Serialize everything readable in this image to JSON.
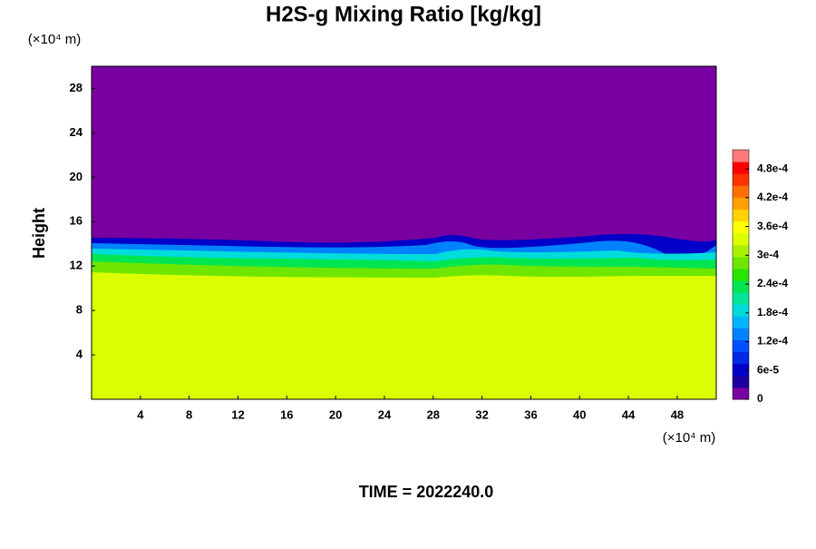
{
  "chart_data": {
    "type": "contour",
    "title": "H2S-g Mixing Ratio [kg/kg]",
    "y_label": "Height",
    "x_unit": "(×10⁴ m)",
    "y_unit": "(×10⁴ m)",
    "footer": "TIME = 2022240.0",
    "xlim": [
      0,
      51.2
    ],
    "xticks": [
      4,
      8,
      12,
      16,
      20,
      24,
      28,
      32,
      36,
      40,
      44,
      48
    ],
    "ylim": [
      0,
      30
    ],
    "yticks": [
      4,
      8,
      12,
      16,
      20,
      24,
      28
    ],
    "colorbar": {
      "lim": [
        0,
        0.00052
      ],
      "ticks": [
        0,
        {
          "value": 6e-05,
          "label": "6e-5"
        },
        {
          "value": 0.00012,
          "label": "1.2e-4"
        },
        {
          "value": 0.00018,
          "label": "1.8e-4"
        },
        {
          "value": 0.00024,
          "label": "2.4e-4"
        },
        {
          "value": 0.0003,
          "label": "3e-4"
        },
        {
          "value": 0.00036,
          "label": "3.6e-4"
        },
        {
          "value": 0.00042,
          "label": "4.2e-4"
        },
        {
          "value": 0.00048,
          "label": "4.8e-4"
        }
      ],
      "colors": [
        "#7800a0",
        "#1e00a0",
        "#0000c8",
        "#0028e6",
        "#0050ff",
        "#0082ff",
        "#00b4ff",
        "#00dcdc",
        "#00e696",
        "#00e650",
        "#28e600",
        "#6ee600",
        "#aaf000",
        "#dcff00",
        "#ffff00",
        "#ffd200",
        "#ffa000",
        "#ff6e00",
        "#ff3200",
        "#ff0000",
        "#ff7878"
      ]
    }
  }
}
